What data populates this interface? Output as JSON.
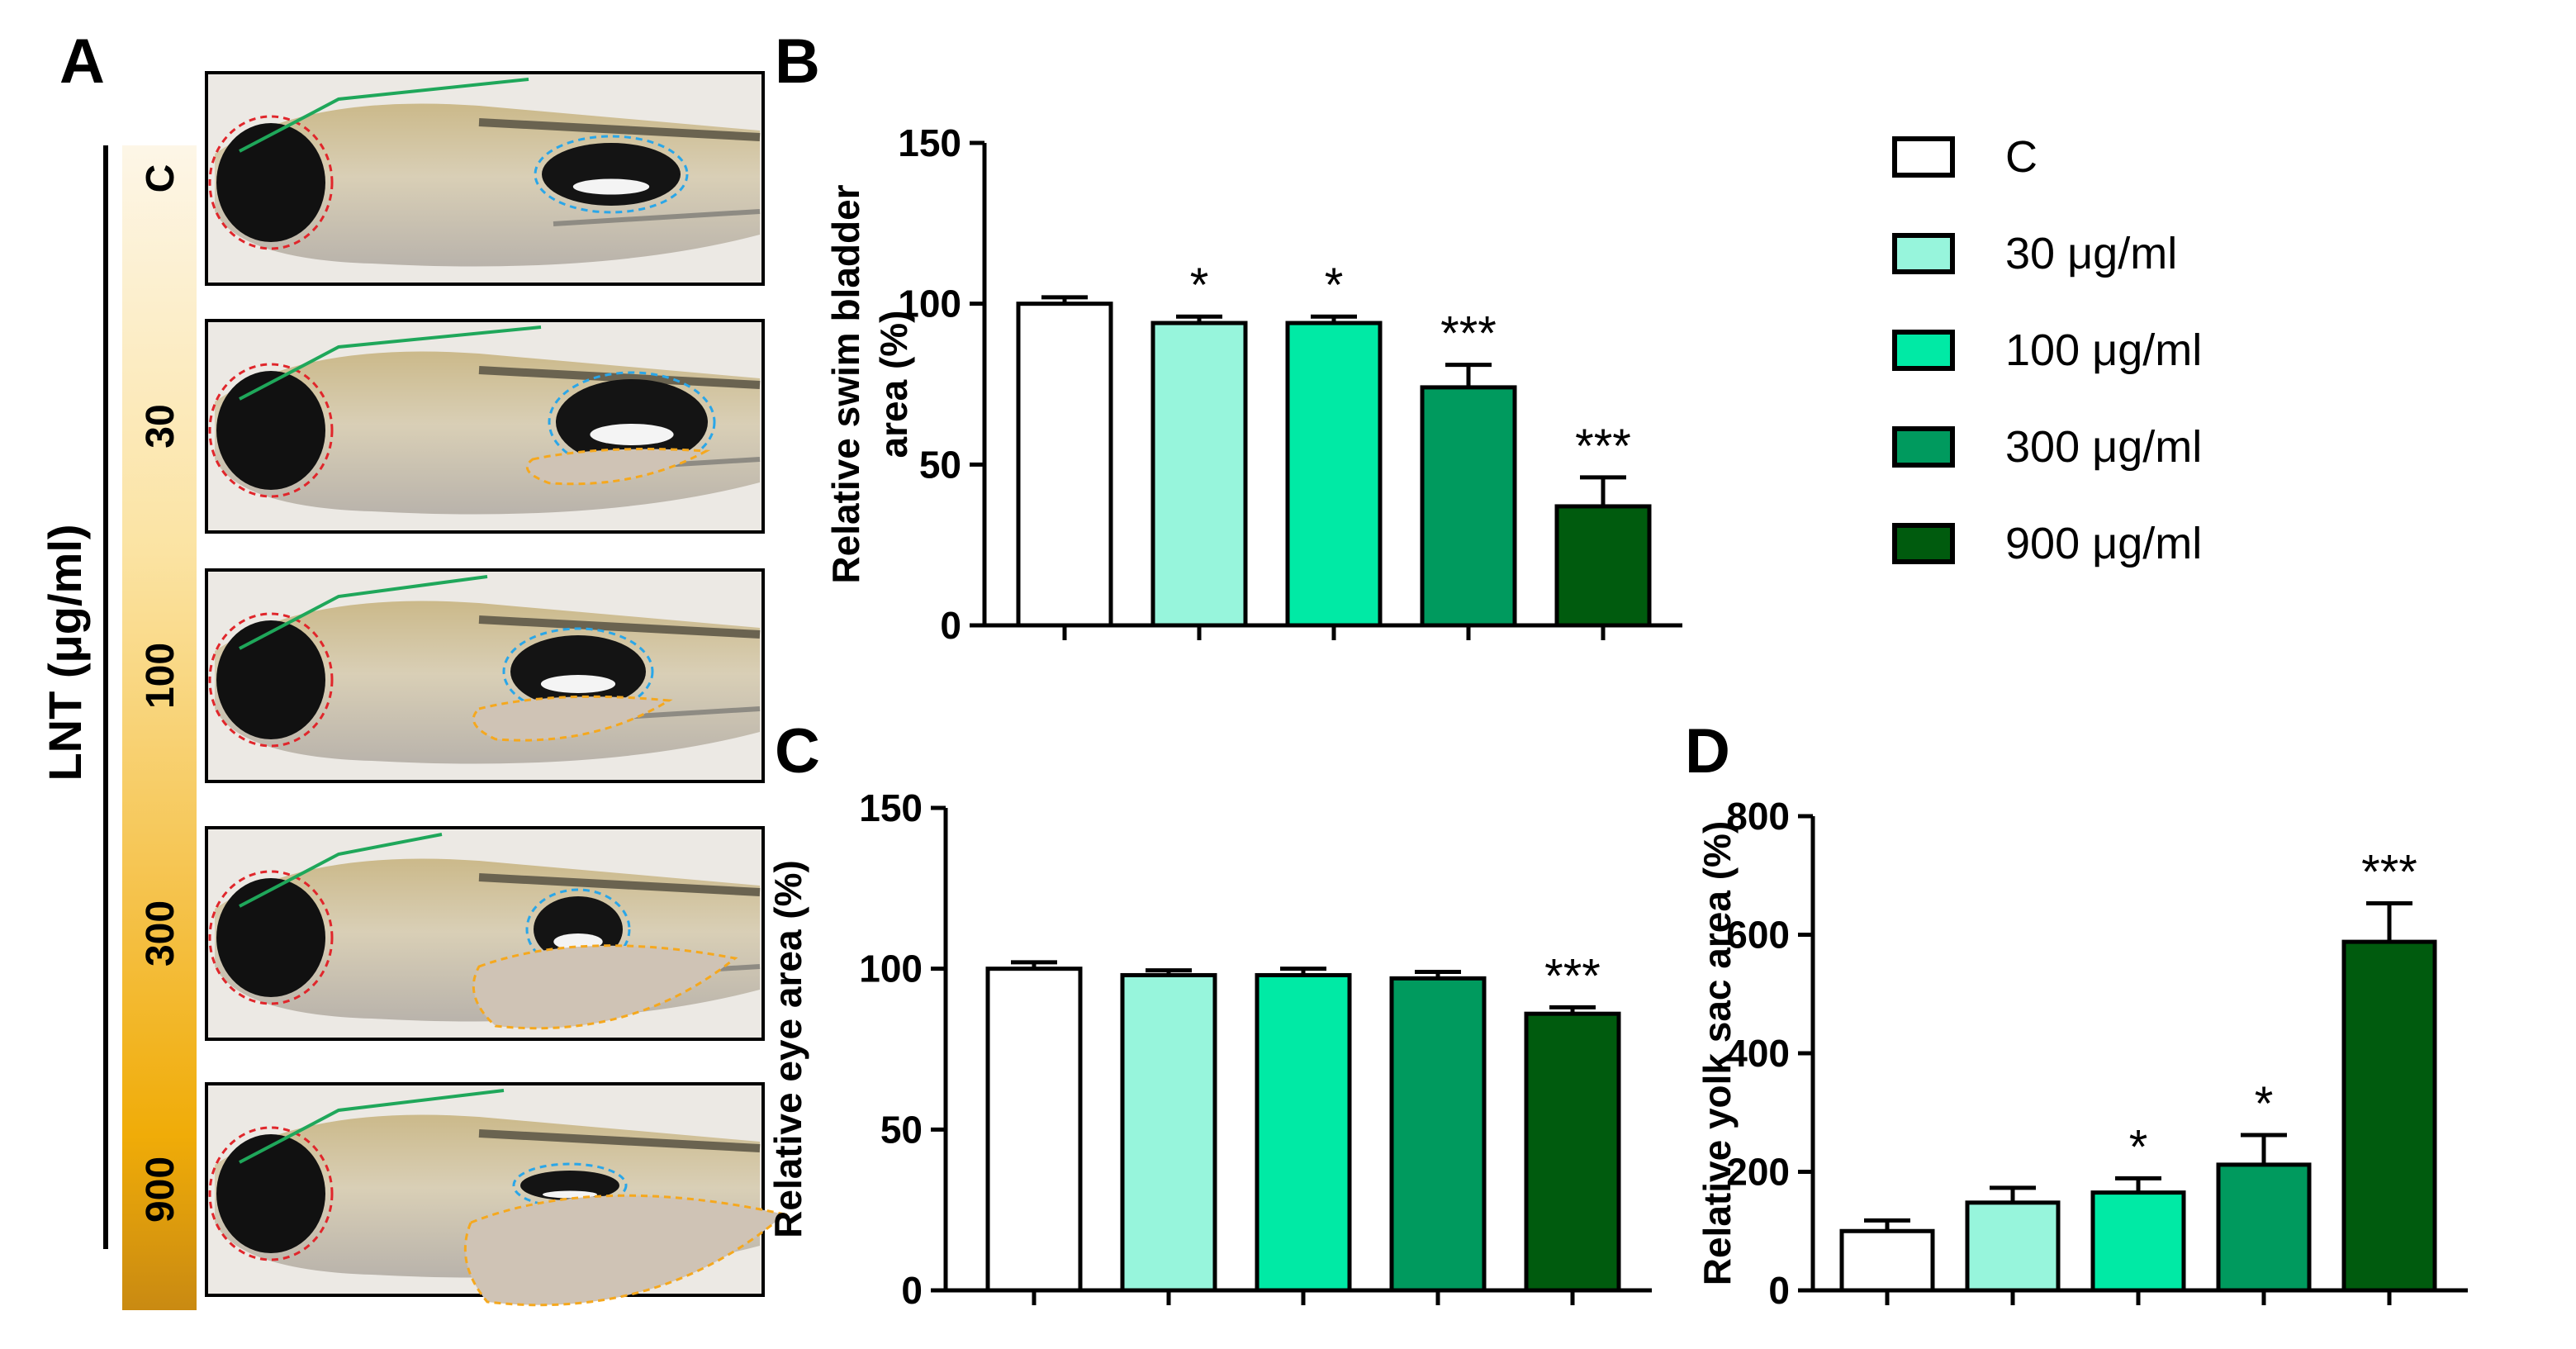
{
  "panel_labels": {
    "a": "A",
    "b": "B",
    "c": "C",
    "d": "D"
  },
  "panel_a": {
    "side_label": "LNT (μg/ml)",
    "concentrations": [
      "C",
      "30",
      "100",
      "300",
      "900"
    ]
  },
  "legend": {
    "entries": [
      "C",
      "30 μg/ml",
      "100 μg/ml",
      "300 μg/ml",
      "900 μg/ml"
    ],
    "colors": [
      "#ffffff",
      "#97f5dc",
      "#00eaa5",
      "#009a5e",
      "#005b0e"
    ]
  },
  "chart_data": [
    {
      "panel": "B",
      "type": "bar",
      "ylabel": [
        "Relative swim bladder",
        "area (%)"
      ],
      "ylim": [
        0,
        150
      ],
      "yticks": [
        "0",
        "50",
        "100",
        "150"
      ],
      "categories": [
        "C",
        "30 μg/ml",
        "100 μg/ml",
        "300 μg/ml",
        "900 μg/ml"
      ],
      "values": [
        100,
        94,
        94,
        74,
        37
      ],
      "errors": [
        2,
        2,
        2,
        7,
        9
      ],
      "significance": [
        "",
        "*",
        "*",
        "***",
        "***"
      ]
    },
    {
      "panel": "C",
      "type": "bar",
      "ylabel": [
        "Relative eye area (%)"
      ],
      "ylim": [
        0,
        150
      ],
      "yticks": [
        "0",
        "50",
        "100",
        "150"
      ],
      "categories": [
        "C",
        "30 μg/ml",
        "100 μg/ml",
        "300 μg/ml",
        "900 μg/ml"
      ],
      "values": [
        100,
        98,
        98,
        97,
        86
      ],
      "errors": [
        2,
        1.5,
        2,
        2,
        2
      ],
      "significance": [
        "",
        "",
        "",
        "",
        "***"
      ]
    },
    {
      "panel": "D",
      "type": "bar",
      "ylabel": [
        "Relative yolk sac area (%)"
      ],
      "ylim": [
        0,
        800
      ],
      "yticks": [
        "0",
        "200",
        "400",
        "600",
        "800"
      ],
      "categories": [
        "C",
        "30 μg/ml",
        "100 μg/ml",
        "300 μg/ml",
        "900 μg/ml"
      ],
      "values": [
        100,
        148,
        165,
        212,
        588
      ],
      "errors": [
        18,
        25,
        24,
        50,
        65
      ],
      "significance": [
        "",
        "",
        "*",
        "*",
        "***"
      ]
    }
  ]
}
